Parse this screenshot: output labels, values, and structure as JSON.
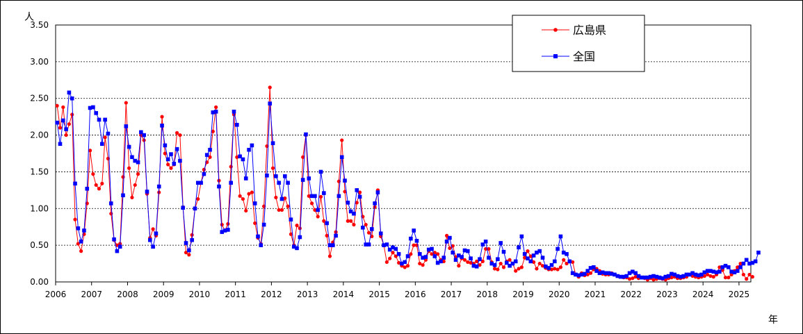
{
  "chart_data": {
    "type": "line",
    "y_unit": "人",
    "x_unit": "年",
    "ylim": [
      0,
      3.5
    ],
    "y_ticks": [
      "0.00",
      "0.50",
      "1.00",
      "1.50",
      "2.00",
      "2.50",
      "3.00",
      "3.50"
    ],
    "x_ticks": [
      "2006",
      "2007",
      "2008",
      "2009",
      "2010",
      "2011",
      "2012",
      "2013",
      "2014",
      "2015",
      "2016",
      "2017",
      "2018",
      "2019",
      "2020",
      "2021",
      "2022",
      "2023",
      "2024",
      "2025"
    ],
    "x_start": 2006,
    "grid": "horizontal",
    "legend_position": "top-right",
    "series": [
      {
        "name": "広島県",
        "color": "#ff0000",
        "marker": "circle",
        "values": [
          2.4,
          2.1,
          2.38,
          2.0,
          2.15,
          2.28,
          0.85,
          0.52,
          0.42,
          0.65,
          1.07,
          1.79,
          1.47,
          1.32,
          1.27,
          1.34,
          1.97,
          1.68,
          0.93,
          0.57,
          0.5,
          0.52,
          1.43,
          2.44,
          1.55,
          1.15,
          1.32,
          1.47,
          2.0,
          1.93,
          1.2,
          0.6,
          0.72,
          0.63,
          1.22,
          2.25,
          1.75,
          1.6,
          1.55,
          1.6,
          2.03,
          2.0,
          1.02,
          0.4,
          0.37,
          0.64,
          1.0,
          1.13,
          1.35,
          1.53,
          1.63,
          1.7,
          2.05,
          2.38,
          1.38,
          0.78,
          0.7,
          0.79,
          1.57,
          2.28,
          1.7,
          1.17,
          1.13,
          0.97,
          1.2,
          1.22,
          0.8,
          0.6,
          0.52,
          1.03,
          1.85,
          2.65,
          1.55,
          1.15,
          0.98,
          0.98,
          1.14,
          1.03,
          0.65,
          0.5,
          0.77,
          0.73,
          1.7,
          2.0,
          1.17,
          1.07,
          0.98,
          0.89,
          1.16,
          0.83,
          0.63,
          0.35,
          0.54,
          0.68,
          1.37,
          1.93,
          1.23,
          0.83,
          0.83,
          0.78,
          1.08,
          1.22,
          0.89,
          0.78,
          0.67,
          0.62,
          1.02,
          1.25,
          0.62,
          0.5,
          0.27,
          0.32,
          0.4,
          0.35,
          0.26,
          0.22,
          0.2,
          0.22,
          0.38,
          0.5,
          0.5,
          0.25,
          0.23,
          0.3,
          0.42,
          0.38,
          0.4,
          0.38,
          0.3,
          0.28,
          0.63,
          0.46,
          0.49,
          0.34,
          0.22,
          0.32,
          0.3,
          0.27,
          0.26,
          0.25,
          0.28,
          0.23,
          0.28,
          0.45,
          0.45,
          0.27,
          0.18,
          0.17,
          0.25,
          0.2,
          0.28,
          0.3,
          0.25,
          0.15,
          0.18,
          0.2,
          0.33,
          0.42,
          0.35,
          0.27,
          0.18,
          0.25,
          0.22,
          0.19,
          0.17,
          0.17,
          0.18,
          0.17,
          0.2,
          0.3,
          0.25,
          0.28,
          0.27,
          0.1,
          0.07,
          0.12,
          0.09,
          0.1,
          0.12,
          0.17,
          0.18,
          0.15,
          0.11,
          0.1,
          0.1,
          0.12,
          0.1,
          0.08,
          0.07,
          0.06,
          0.06,
          0.04,
          0.05,
          0.07,
          0.05,
          0.06,
          0.05,
          0.03,
          0.05,
          0.03,
          0.04,
          0.05,
          0.04,
          0.03,
          0.05,
          0.06,
          0.07,
          0.05,
          0.05,
          0.06,
          0.07,
          0.1,
          0.08,
          0.07,
          0.06,
          0.07,
          0.08,
          0.1,
          0.08,
          0.07,
          0.1,
          0.2,
          0.16,
          0.06,
          0.06,
          0.1,
          0.15,
          0.2,
          0.25,
          0.1,
          0.04,
          0.1,
          0.07
        ]
      },
      {
        "name": "全国",
        "color": "#0000ff",
        "marker": "square",
        "values": [
          2.17,
          1.88,
          2.2,
          2.08,
          2.58,
          2.5,
          1.34,
          0.73,
          0.55,
          0.7,
          1.27,
          2.37,
          2.38,
          2.3,
          2.21,
          1.88,
          2.21,
          2.02,
          1.07,
          0.58,
          0.42,
          0.48,
          1.18,
          2.12,
          1.84,
          1.7,
          1.65,
          1.63,
          2.04,
          2.0,
          1.23,
          0.57,
          0.48,
          0.66,
          1.3,
          2.13,
          1.86,
          1.67,
          1.74,
          1.61,
          1.81,
          1.65,
          1.01,
          0.53,
          0.43,
          0.57,
          1.0,
          1.35,
          1.35,
          1.47,
          1.73,
          1.8,
          2.31,
          2.32,
          1.3,
          0.68,
          0.7,
          0.71,
          1.35,
          2.32,
          2.14,
          1.71,
          1.67,
          1.41,
          1.8,
          1.86,
          1.07,
          0.62,
          0.5,
          0.78,
          1.45,
          2.43,
          1.89,
          1.44,
          1.35,
          1.13,
          1.44,
          1.35,
          0.85,
          0.48,
          0.46,
          0.61,
          1.39,
          2.01,
          1.41,
          1.17,
          1.17,
          0.98,
          1.5,
          1.21,
          0.8,
          0.5,
          0.5,
          0.63,
          1.17,
          1.7,
          1.38,
          1.08,
          0.96,
          0.93,
          1.25,
          1.16,
          0.74,
          0.51,
          0.51,
          0.72,
          1.07,
          1.22,
          0.66,
          0.5,
          0.51,
          0.44,
          0.47,
          0.45,
          0.38,
          0.25,
          0.27,
          0.35,
          0.59,
          0.7,
          0.56,
          0.38,
          0.33,
          0.34,
          0.44,
          0.45,
          0.35,
          0.26,
          0.28,
          0.33,
          0.55,
          0.6,
          0.4,
          0.3,
          0.36,
          0.34,
          0.43,
          0.42,
          0.32,
          0.22,
          0.21,
          0.31,
          0.51,
          0.55,
          0.33,
          0.25,
          0.23,
          0.31,
          0.53,
          0.41,
          0.26,
          0.22,
          0.25,
          0.28,
          0.47,
          0.62,
          0.38,
          0.32,
          0.28,
          0.36,
          0.4,
          0.42,
          0.33,
          0.21,
          0.19,
          0.23,
          0.28,
          0.45,
          0.62,
          0.4,
          0.38,
          0.28,
          0.12,
          0.1,
          0.09,
          0.1,
          0.11,
          0.15,
          0.19,
          0.2,
          0.15,
          0.12,
          0.13,
          0.12,
          0.12,
          0.11,
          0.1,
          0.08,
          0.07,
          0.07,
          0.08,
          0.12,
          0.14,
          0.12,
          0.08,
          0.06,
          0.06,
          0.06,
          0.07,
          0.08,
          0.07,
          0.06,
          0.05,
          0.07,
          0.08,
          0.11,
          0.1,
          0.08,
          0.07,
          0.08,
          0.1,
          0.1,
          0.12,
          0.1,
          0.09,
          0.1,
          0.13,
          0.15,
          0.15,
          0.14,
          0.13,
          0.14,
          0.2,
          0.22,
          0.2,
          0.14,
          0.13,
          0.15,
          0.2,
          0.25,
          0.3,
          0.25,
          0.26,
          0.28,
          0.4
        ]
      }
    ]
  }
}
